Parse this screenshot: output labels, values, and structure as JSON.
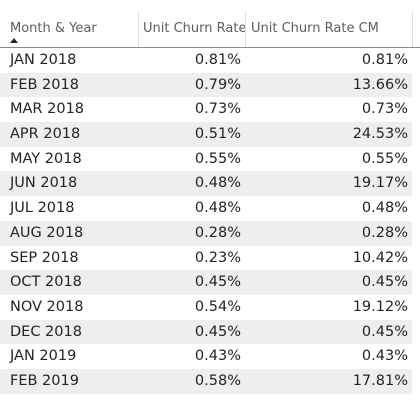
{
  "table": {
    "columns": [
      "Month & Year",
      "Unit Churn Rate",
      "Unit Churn Rate CM"
    ],
    "sort_indicator": "ascending",
    "rows": [
      {
        "month": "JAN 2018",
        "rate": "0.81%",
        "rate_cm": "0.81%"
      },
      {
        "month": "FEB 2018",
        "rate": "0.79%",
        "rate_cm": "13.66%"
      },
      {
        "month": "MAR 2018",
        "rate": "0.73%",
        "rate_cm": "0.73%"
      },
      {
        "month": "APR 2018",
        "rate": "0.51%",
        "rate_cm": "24.53%"
      },
      {
        "month": "MAY 2018",
        "rate": "0.55%",
        "rate_cm": "0.55%"
      },
      {
        "month": "JUN 2018",
        "rate": "0.48%",
        "rate_cm": "19.17%"
      },
      {
        "month": "JUL 2018",
        "rate": "0.48%",
        "rate_cm": "0.48%"
      },
      {
        "month": "AUG 2018",
        "rate": "0.28%",
        "rate_cm": "0.28%"
      },
      {
        "month": "SEP 2018",
        "rate": "0.23%",
        "rate_cm": "10.42%"
      },
      {
        "month": "OCT 2018",
        "rate": "0.45%",
        "rate_cm": "0.45%"
      },
      {
        "month": "NOV 2018",
        "rate": "0.54%",
        "rate_cm": "19.12%"
      },
      {
        "month": "DEC 2018",
        "rate": "0.45%",
        "rate_cm": "0.45%"
      },
      {
        "month": "JAN 2019",
        "rate": "0.43%",
        "rate_cm": "0.43%"
      },
      {
        "month": "FEB 2019",
        "rate": "0.58%",
        "rate_cm": "17.81%"
      }
    ]
  }
}
